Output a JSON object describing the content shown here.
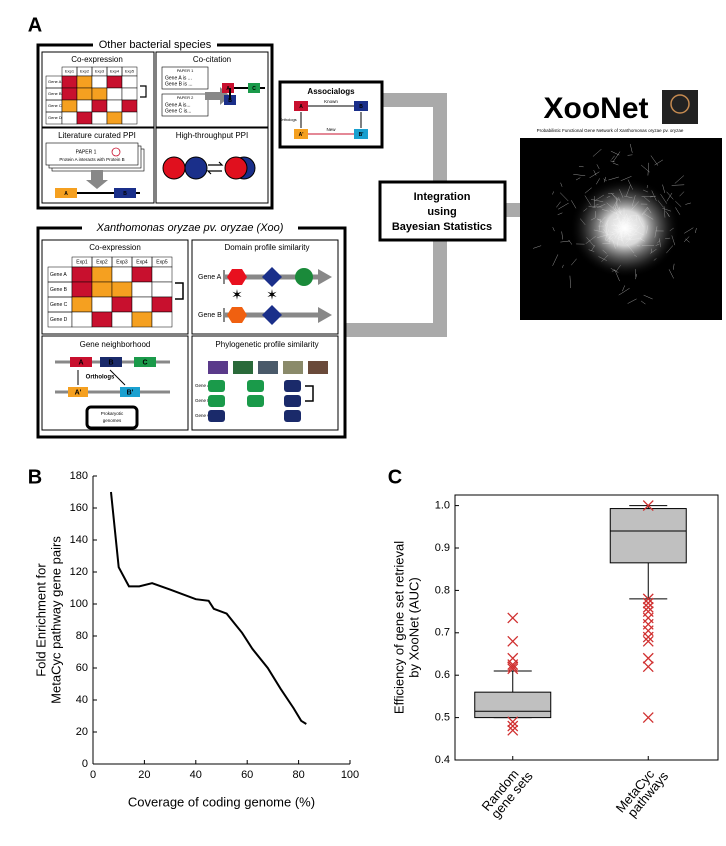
{
  "panel_a": {
    "label": "A",
    "other_species": {
      "title": "Other bacterial species",
      "coexpression": {
        "title": "Co-expression",
        "columns": [
          "Exp1",
          "Exp2",
          "Exp3",
          "Exp4",
          "Exp5"
        ],
        "rows": [
          "Gene A",
          "Gene B",
          "Gene C",
          "Gene D"
        ]
      },
      "cocitation": {
        "title": "Co-citation",
        "paper1": {
          "title": "PAPER 1",
          "lines": [
            "Gene A is ...",
            "Gene B is ..."
          ]
        },
        "paper2": {
          "title": "PAPER 2",
          "lines": [
            "Gene A is...",
            "Gene C is..."
          ]
        },
        "genes": [
          "A",
          "B",
          "C"
        ]
      },
      "literature_ppi": {
        "title": "Literature curated PPI",
        "paper": "PAPER 1",
        "sentence": "Protein A interacts with Protein B",
        "genes": [
          "A",
          "B"
        ]
      },
      "ht_ppi": {
        "title": "High-throughput PPI"
      }
    },
    "associalogs": {
      "title": "Associalogs",
      "genes": [
        "A",
        "B",
        "A'",
        "B'"
      ],
      "known": "Known",
      "new": "New",
      "orthologs": "Orthologs"
    },
    "integration": [
      "Integration",
      "using",
      "Bayesian Statistics"
    ],
    "xoonet": {
      "title": "XooNet",
      "subtitle": "Probabilistic Functional Gene Network of Xanthomonas oryzae pv. oryzae"
    },
    "xoo": {
      "title": "Xanthomonas oryzae pv. oryzae (Xoo)",
      "coexpression": {
        "title": "Co-expression",
        "columns": [
          "Exp1",
          "Exp2",
          "Exp3",
          "Exp4",
          "Exp5"
        ],
        "rows": [
          "Gene A",
          "Gene B",
          "Gene C",
          "Gene D"
        ]
      },
      "domain": {
        "title": "Domain profile similarity",
        "genes": [
          "Gene A",
          "Gene B"
        ]
      },
      "neighborhood": {
        "title": "Gene neighborhood",
        "genes": [
          "A",
          "B",
          "C",
          "A'",
          "B'"
        ],
        "orthologs": "Orthologs",
        "genomes": [
          "Prokaryotic",
          "genomes"
        ]
      },
      "phylogenetic": {
        "title": "Phylogenetic profile similarity",
        "genes": [
          "Gene A",
          "Gene B",
          "Gene C"
        ]
      }
    }
  },
  "chart_data": [
    {
      "type": "line",
      "label": "B",
      "xlabel": "Coverage of coding genome (%)",
      "ylabel": [
        "Fold Enrichment for",
        "MetaCyc pathway gene pairs"
      ],
      "x": [
        7,
        10,
        14,
        18,
        23,
        30,
        40,
        45,
        47,
        52,
        55,
        58,
        62,
        68,
        73,
        78,
        81,
        83
      ],
      "values": [
        170,
        123,
        111,
        111,
        113,
        109,
        103,
        102,
        97,
        94,
        88,
        82,
        72,
        60,
        47,
        35,
        27,
        25
      ],
      "color": "#000000",
      "xlim": [
        0,
        100
      ],
      "xticks": [
        0,
        20,
        40,
        60,
        80,
        100
      ],
      "ylim": [
        0,
        180
      ],
      "yticks": [
        0,
        20,
        40,
        60,
        80,
        100,
        120,
        140,
        160,
        180
      ]
    },
    {
      "type": "box",
      "label": "C",
      "ylabel": [
        "Efficiency of gene set retrieval",
        "by XooNet (AUC)"
      ],
      "categories": [
        [
          "Random",
          "gene sets"
        ],
        [
          "MetaCyc",
          "pathways"
        ]
      ],
      "boxes": [
        {
          "min": 0.5,
          "q1": 0.5,
          "median": 0.515,
          "q3": 0.56,
          "max": 0.61,
          "outliers": [
            0.735,
            0.68,
            0.64,
            0.625,
            0.62,
            0.615,
            0.49,
            0.48,
            0.47
          ]
        },
        {
          "min": 0.78,
          "q1": 0.865,
          "median": 0.94,
          "q3": 0.993,
          "max": 1.0,
          "outliers": [
            1.0,
            0.78,
            0.77,
            0.76,
            0.75,
            0.735,
            0.72,
            0.705,
            0.69,
            0.68,
            0.64,
            0.62,
            0.5
          ]
        }
      ],
      "color": "#c0c0c0",
      "outlier_color": "#d03030",
      "ylim": [
        0.4,
        1.025
      ],
      "yticks": [
        0.4,
        0.5,
        0.6,
        0.7,
        0.8,
        0.9,
        {
          "value": 1,
          "label": "1.0"
        }
      ]
    }
  ]
}
